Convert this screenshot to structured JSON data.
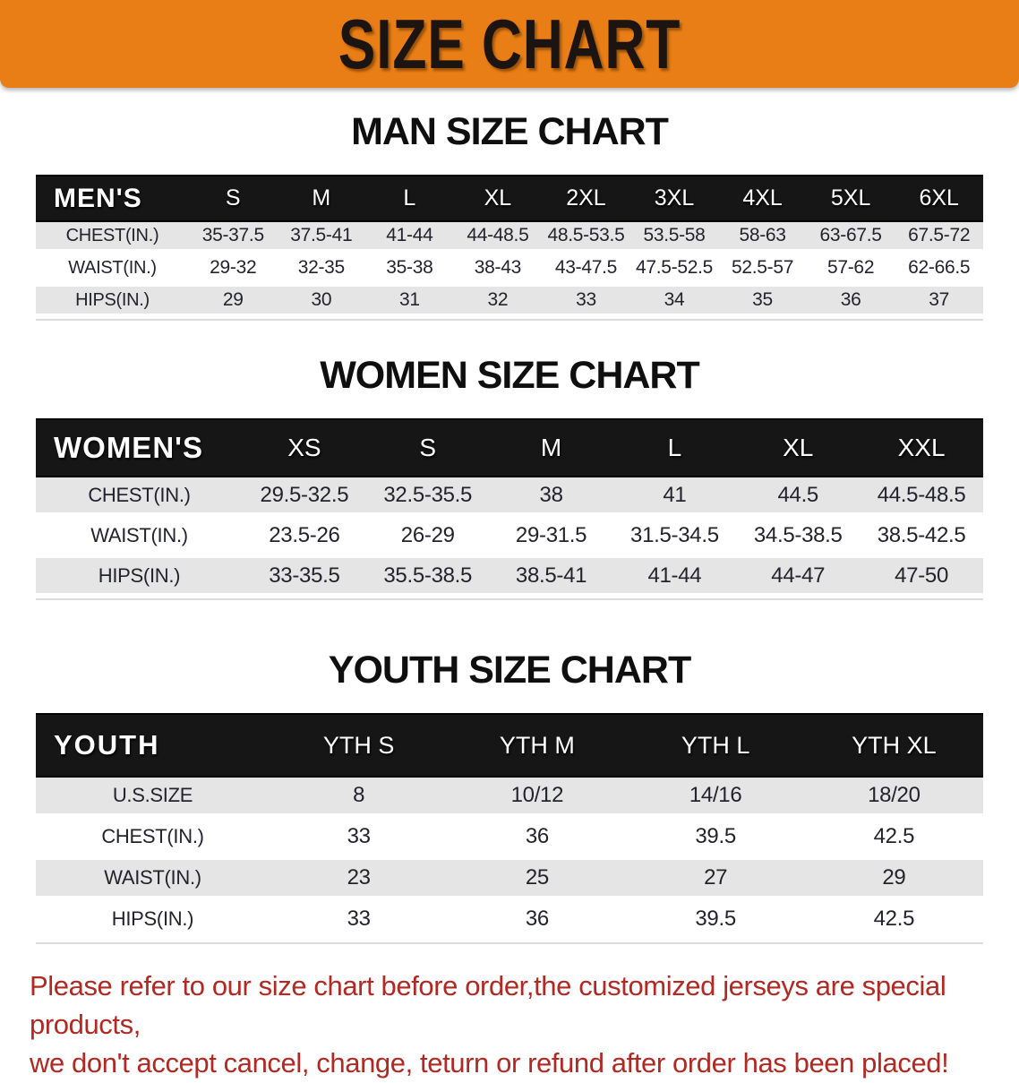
{
  "banner": {
    "title": "SIZE CHART",
    "bg_color": "#E87E15",
    "text_color": "#1B1410"
  },
  "sections": [
    {
      "id": "men",
      "heading": "MAN SIZE CHART",
      "label": "MEN'S",
      "columns": [
        "S",
        "M",
        "L",
        "XL",
        "2XL",
        "3XL",
        "4XL",
        "5XL",
        "6XL"
      ],
      "rows": [
        {
          "label": "CHEST(IN.)",
          "values": [
            "35-37.5",
            "37.5-41",
            "41-44",
            "44-48.5",
            "48.5-53.5",
            "53.5-58",
            "58-63",
            "63-67.5",
            "67.5-72"
          ]
        },
        {
          "label": "WAIST(IN.)",
          "values": [
            "29-32",
            "32-35",
            "35-38",
            "38-43",
            "43-47.5",
            "47.5-52.5",
            "52.5-57",
            "57-62",
            "62-66.5"
          ]
        },
        {
          "label": "HIPS(IN.)",
          "values": [
            "29",
            "30",
            "31",
            "32",
            "33",
            "34",
            "35",
            "36",
            "37"
          ]
        }
      ]
    },
    {
      "id": "women",
      "heading": "WOMEN SIZE CHART",
      "label": "WOMEN'S",
      "columns": [
        "XS",
        "S",
        "M",
        "L",
        "XL",
        "XXL"
      ],
      "rows": [
        {
          "label": "CHEST(IN.)",
          "values": [
            "29.5-32.5",
            "32.5-35.5",
            "38",
            "41",
            "44.5",
            "44.5-48.5"
          ]
        },
        {
          "label": "WAIST(IN.)",
          "values": [
            "23.5-26",
            "26-29",
            "29-31.5",
            "31.5-34.5",
            "34.5-38.5",
            "38.5-42.5"
          ]
        },
        {
          "label": "HIPS(IN.)",
          "values": [
            "33-35.5",
            "35.5-38.5",
            "38.5-41",
            "41-44",
            "44-47",
            "47-50"
          ]
        }
      ]
    },
    {
      "id": "youth",
      "heading": "YOUTH SIZE CHART",
      "label": "YOUTH",
      "columns": [
        "YTH S",
        "YTH M",
        "YTH L",
        "YTH XL"
      ],
      "rows": [
        {
          "label": "U.S.SIZE",
          "values": [
            "8",
            "10/12",
            "14/16",
            "18/20"
          ]
        },
        {
          "label": "CHEST(IN.)",
          "values": [
            "33",
            "36",
            "39.5",
            "42.5"
          ]
        },
        {
          "label": "WAIST(IN.)",
          "values": [
            "23",
            "25",
            "27",
            "29"
          ]
        },
        {
          "label": "HIPS(IN.)",
          "values": [
            "33",
            "36",
            "39.5",
            "42.5"
          ]
        }
      ]
    }
  ],
  "footer": {
    "line1": "Please refer to our size chart before order,the customized jerseys are special products,",
    "line2": "we don't accept cancel, change, teturn or refund after order has been placed!",
    "text_color": "#B22822"
  },
  "table_style": {
    "header_bg": "#161616",
    "header_text": "#FFFFFF",
    "stripe_gray": "#E5E5E5",
    "cell_text": "#23232D"
  }
}
